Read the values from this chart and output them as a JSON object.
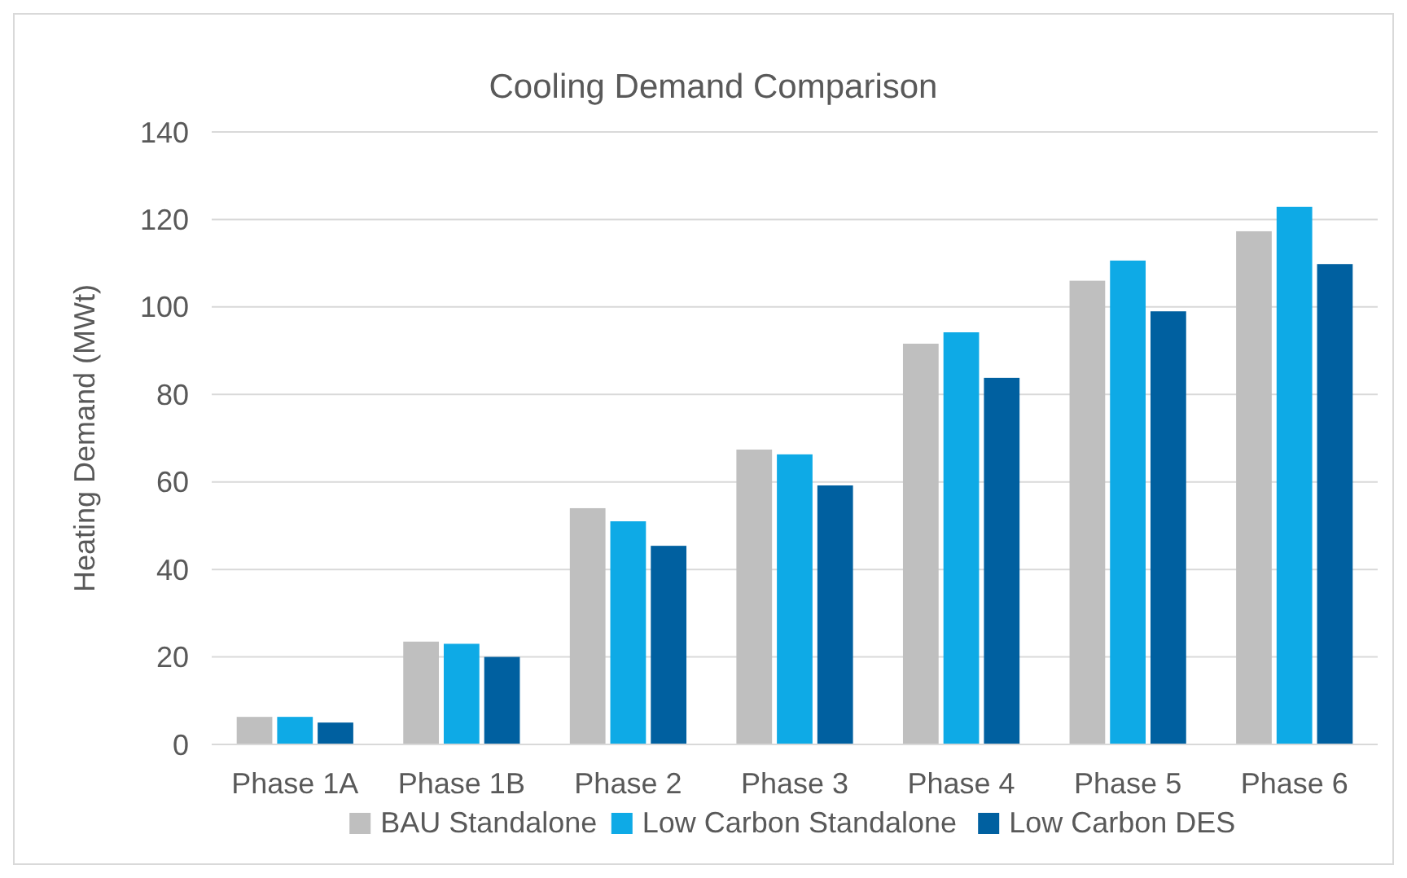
{
  "chart_data": {
    "type": "bar",
    "title": "Cooling Demand Comparison",
    "ylabel": "Heating Demand (MWt)",
    "categories": [
      "Phase 1A",
      "Phase 1B",
      "Phase 2",
      "Phase 3",
      "Phase 4",
      "Phase 5",
      "Phase 6"
    ],
    "series": [
      {
        "name": "BAU Standalone",
        "color": "#bfbfbf",
        "values": [
          6.3,
          23.5,
          54,
          67.4,
          91.6,
          106,
          117.3
        ]
      },
      {
        "name": "Low Carbon Standalone",
        "color": "#0eaae6",
        "values": [
          6.3,
          23,
          51,
          66.3,
          94.2,
          110.6,
          122.9
        ]
      },
      {
        "name": "Low Carbon DES",
        "color": "#0060a0",
        "values": [
          5,
          20,
          45.4,
          59.2,
          83.8,
          99,
          109.8
        ]
      }
    ],
    "ylim": [
      0,
      140
    ],
    "yticks": [
      0,
      20,
      40,
      60,
      80,
      100,
      120,
      140
    ],
    "grid": "y",
    "legend": "bottom"
  }
}
